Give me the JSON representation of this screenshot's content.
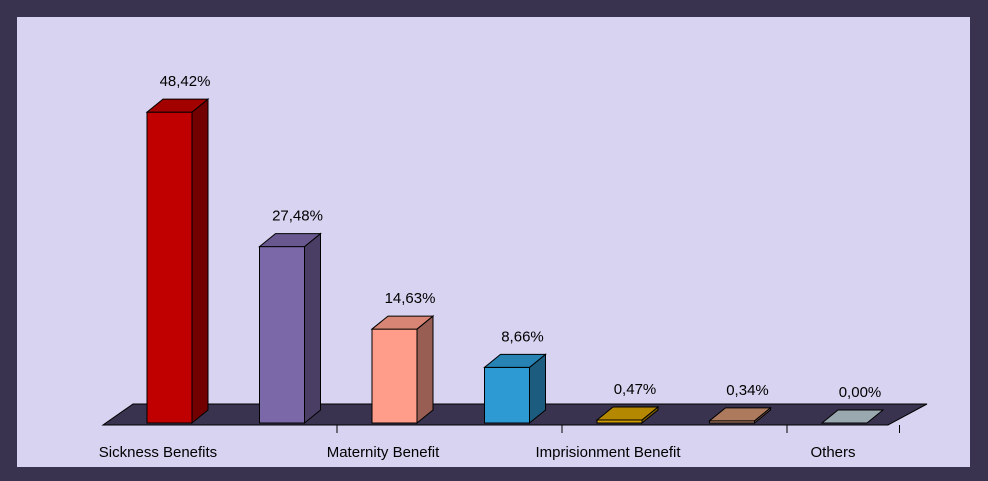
{
  "chart_data": {
    "type": "bar3d",
    "categories": [
      "Sickness Benefits",
      null,
      "Maternity Benefit",
      null,
      "Imprisionment Benefit",
      null,
      "Others"
    ],
    "values": [
      48.42,
      27.48,
      14.63,
      8.66,
      0.47,
      0.34,
      0.0
    ],
    "value_labels": [
      "48,42%",
      "27,48%",
      "14,63%",
      "8,66%",
      "0,47%",
      "0,34%",
      "0,00%"
    ],
    "colors": [
      "#c00000",
      "#7b68a8",
      "#ff9c8a",
      "#2e9ad4",
      "#d4a000",
      "#cc8f6e",
      "#9aa9b0"
    ]
  }
}
